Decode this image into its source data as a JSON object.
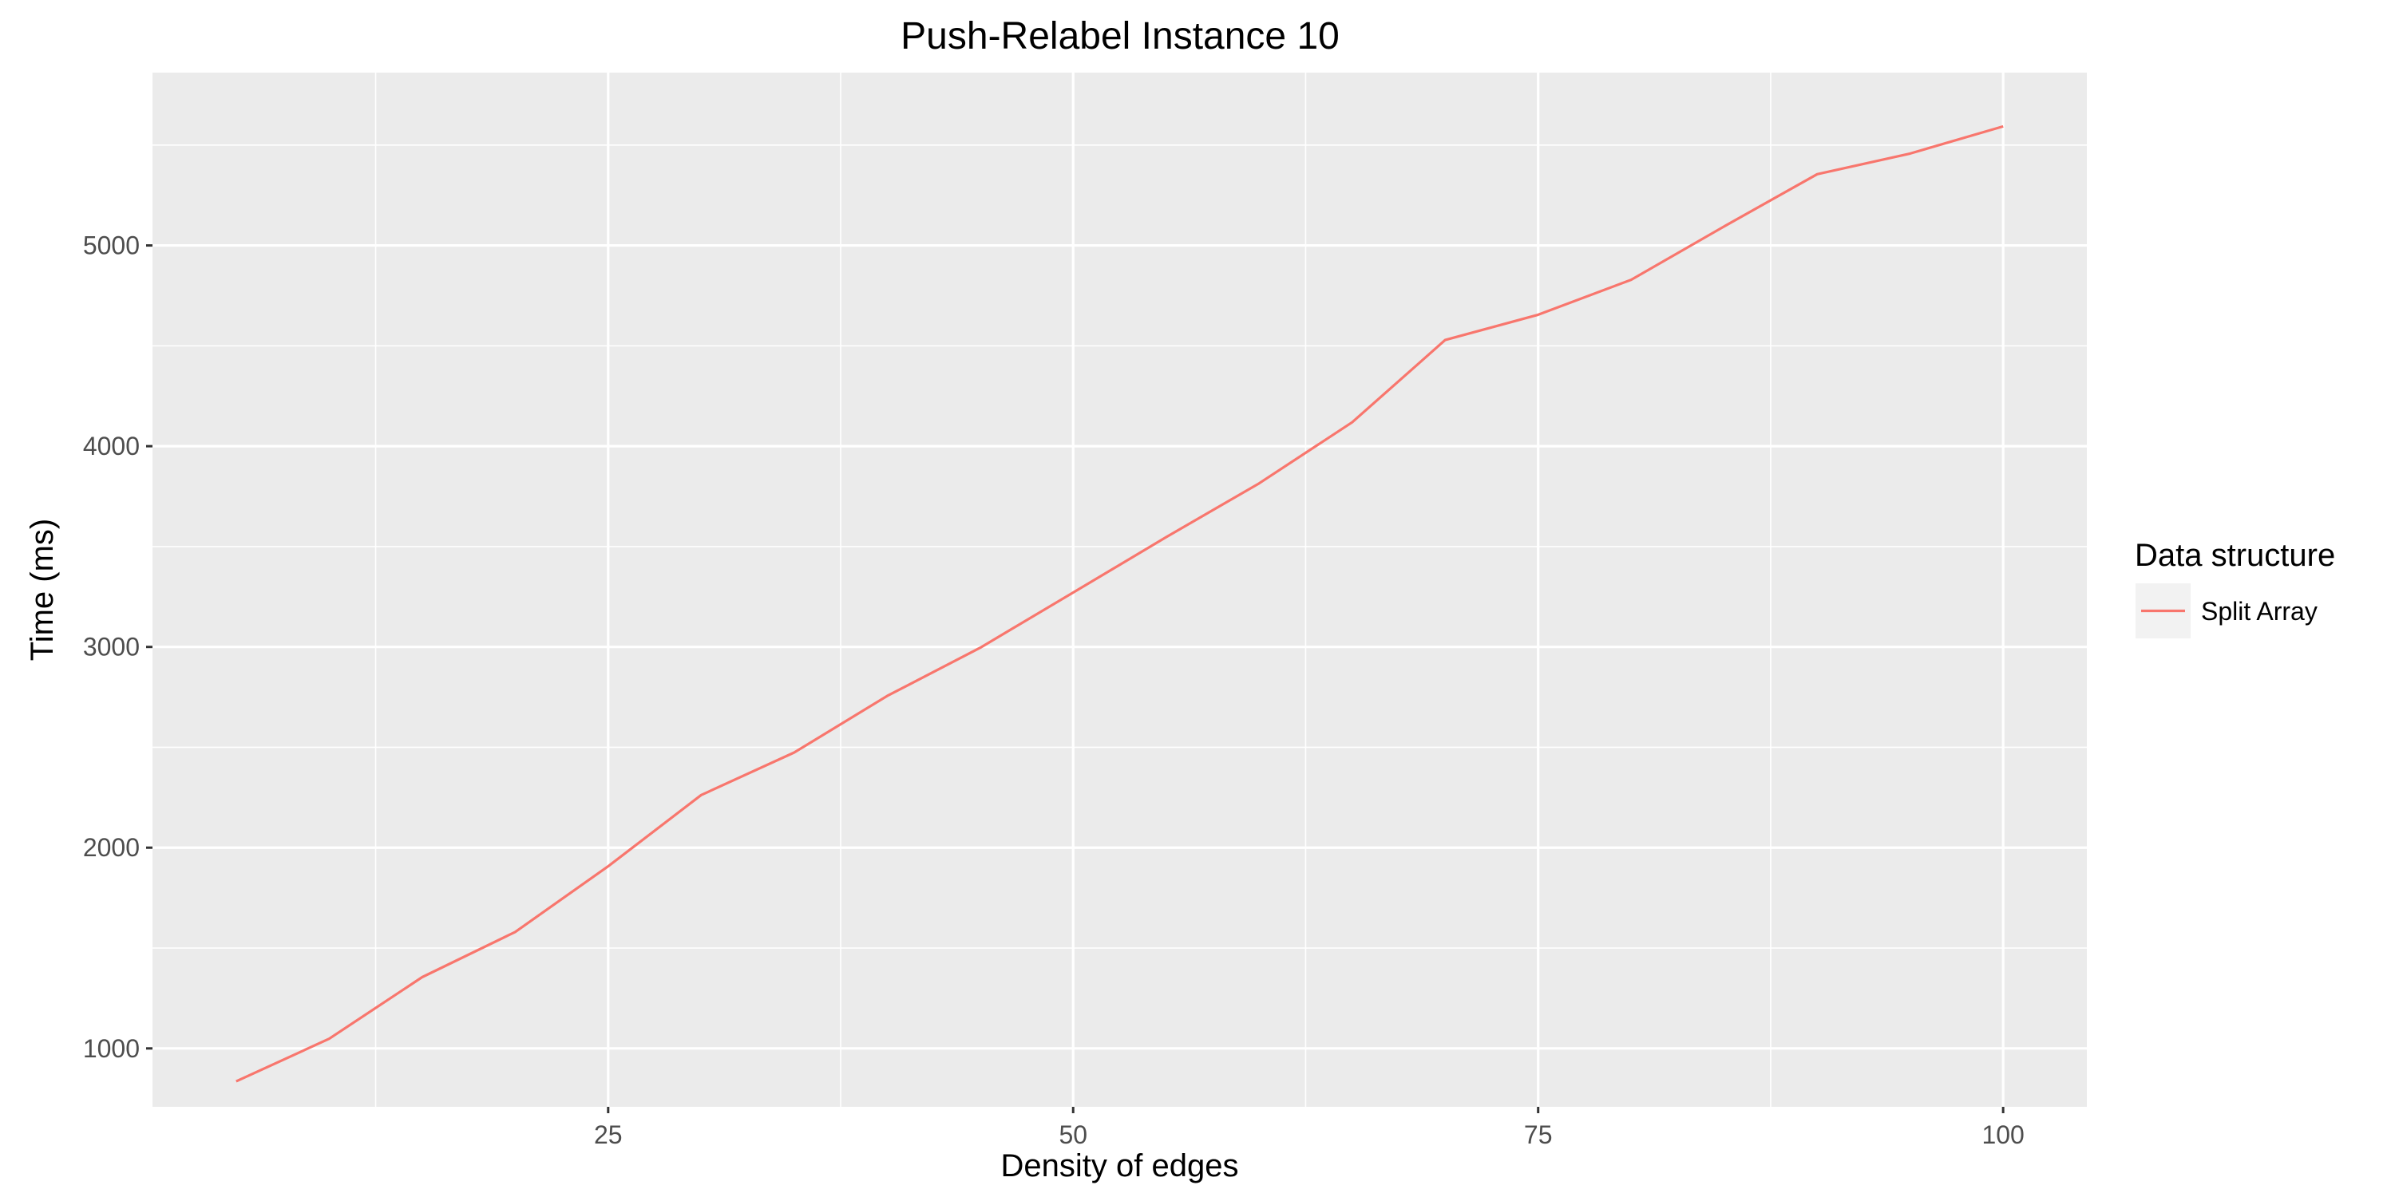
{
  "chart_data": {
    "type": "line",
    "title": "Push-Relabel Instance 10",
    "xlabel": "Density of edges",
    "ylabel": "Time (ms)",
    "xlim": [
      0.5,
      104.5
    ],
    "ylim": [
      709,
      5861
    ],
    "x_ticks": [
      25,
      50,
      75,
      100
    ],
    "y_ticks": [
      1000,
      2000,
      3000,
      4000,
      5000
    ],
    "grid": true,
    "legend": {
      "title": "Data structure",
      "position": "right"
    },
    "series": [
      {
        "name": "Split Array",
        "color": "#F8766D",
        "x": [
          5,
          10,
          15,
          20,
          25,
          30,
          35,
          40,
          45,
          50,
          55,
          60,
          65,
          70,
          75,
          80,
          85,
          90,
          95,
          100
        ],
        "y": [
          836,
          1048,
          1355,
          1580,
          1907,
          2262,
          2474,
          2756,
          2996,
          3271,
          3547,
          3815,
          4119,
          4529,
          4655,
          4829,
          5095,
          5355,
          5458,
          5593
        ]
      }
    ]
  }
}
